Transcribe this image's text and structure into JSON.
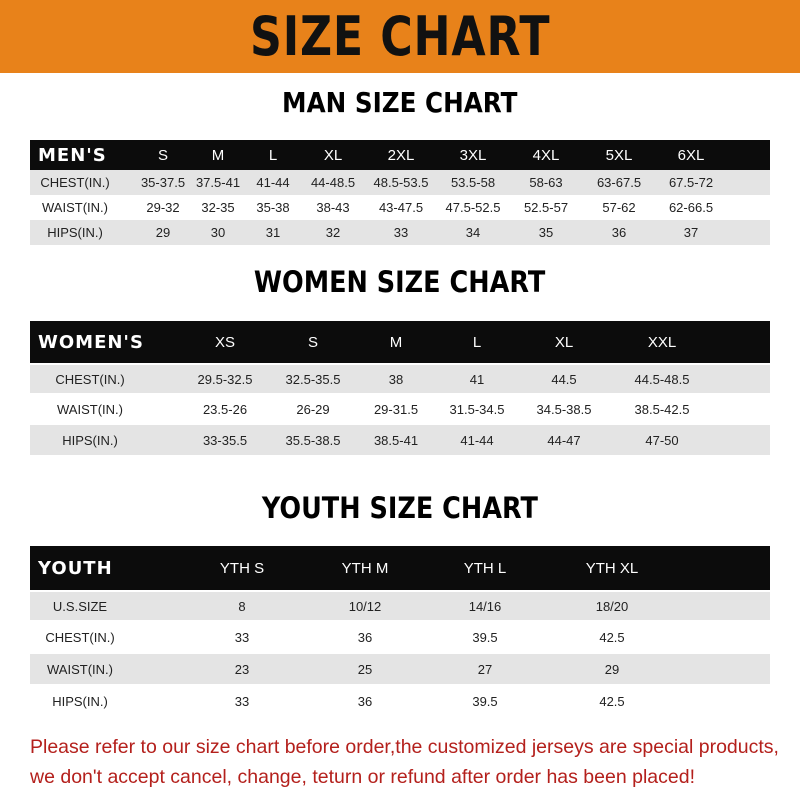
{
  "header": {
    "title": "SIZE CHART",
    "accent_color": "#e8821a"
  },
  "men": {
    "title": "MAN SIZE CHART",
    "columns": [
      "MEN'S",
      "S",
      "M",
      "L",
      "XL",
      "2XL",
      "3XL",
      "4XL",
      "5XL",
      "6XL"
    ],
    "rows": [
      [
        "CHEST(IN.)",
        "35-37.5",
        "37.5-41",
        "41-44",
        "44-48.5",
        "48.5-53.5",
        "53.5-58",
        "58-63",
        "63-67.5",
        "67.5-72"
      ],
      [
        "WAIST(IN.)",
        "29-32",
        "32-35",
        "35-38",
        "38-43",
        "43-47.5",
        "47.5-52.5",
        "52.5-57",
        "57-62",
        "62-66.5"
      ],
      [
        "HIPS(IN.)",
        "29",
        "30",
        "31",
        "32",
        "33",
        "34",
        "35",
        "36",
        "37"
      ]
    ]
  },
  "women": {
    "title": "WOMEN SIZE CHART",
    "columns": [
      "WOMEN'S",
      "XS",
      "S",
      "M",
      "L",
      "XL",
      "XXL"
    ],
    "rows": [
      [
        "CHEST(IN.)",
        "29.5-32.5",
        "32.5-35.5",
        "38",
        "41",
        "44.5",
        "44.5-48.5"
      ],
      [
        "WAIST(IN.)",
        "23.5-26",
        "26-29",
        "29-31.5",
        "31.5-34.5",
        "34.5-38.5",
        "38.5-42.5"
      ],
      [
        "HIPS(IN.)",
        "33-35.5",
        "35.5-38.5",
        "38.5-41",
        "41-44",
        "44-47",
        "47-50"
      ]
    ]
  },
  "youth": {
    "title": "YOUTH SIZE CHART",
    "columns": [
      "YOUTH",
      "YTH S",
      "YTH M",
      "YTH L",
      "YTH XL"
    ],
    "rows": [
      [
        "U.S.SIZE",
        "8",
        "10/12",
        "14/16",
        "18/20"
      ],
      [
        "CHEST(IN.)",
        "33",
        "36",
        "39.5",
        "42.5"
      ],
      [
        "WAIST(IN.)",
        "23",
        "25",
        "27",
        "29"
      ],
      [
        "HIPS(IN.)",
        "33",
        "36",
        "39.5",
        "42.5"
      ]
    ]
  },
  "footer": {
    "line1": "Please refer to our size chart before order,the customized jerseys are special products,",
    "line2": "we don't accept cancel, change, teturn or refund after order has been placed!",
    "color": "#b4201c"
  }
}
